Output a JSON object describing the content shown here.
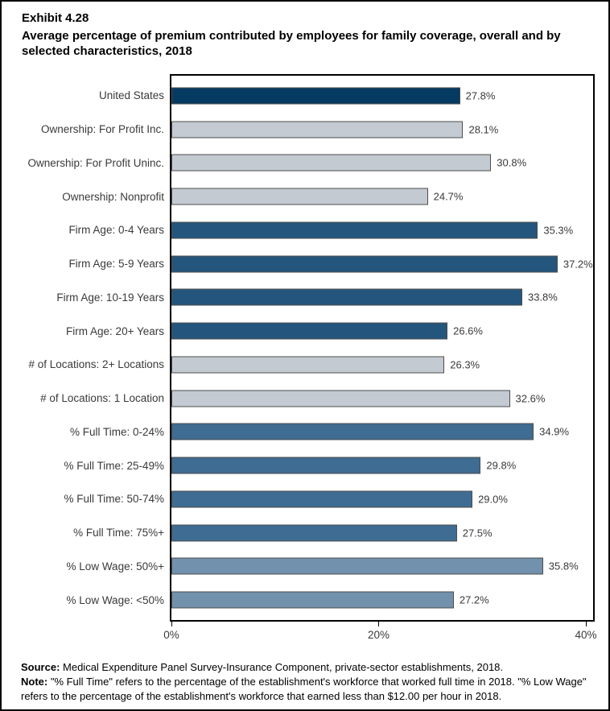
{
  "header": {
    "exhibit": "Exhibit 4.28",
    "title": "Average percentage of premium contributed by employees for family coverage, overall and by selected characteristics, 2018"
  },
  "chart_data": {
    "type": "bar",
    "orientation": "horizontal",
    "title": "Average percentage of premium contributed by employees for family coverage, overall and by selected characteristics, 2018",
    "categories": [
      "United States",
      "Ownership: For Profit Inc.",
      "Ownership: For Profit Uninc.",
      "Ownership: Nonprofit",
      "Firm Age: 0-4 Years",
      "Firm Age: 5-9 Years",
      "Firm Age: 10-19 Years",
      "Firm Age: 20+ Years",
      "# of Locations: 2+ Locations",
      "# of Locations: 1 Location",
      "% Full Time: 0-24%",
      "% Full Time: 25-49%",
      "% Full Time: 50-74%",
      "% Full Time: 75%+",
      "% Low Wage: 50%+",
      "% Low Wage: <50%"
    ],
    "values": [
      27.8,
      28.1,
      30.8,
      24.7,
      35.3,
      37.2,
      33.8,
      26.6,
      26.3,
      32.6,
      34.9,
      29.8,
      29.0,
      27.5,
      35.8,
      27.2
    ],
    "value_labels": [
      "27.8%",
      "28.1%",
      "30.8%",
      "24.7%",
      "35.3%",
      "37.2%",
      "33.8%",
      "26.6%",
      "26.3%",
      "32.6%",
      "34.9%",
      "29.8%",
      "29.0%",
      "27.5%",
      "35.8%",
      "27.2%"
    ],
    "bar_colors": [
      "#053a62",
      "#c4cad2",
      "#c4cad2",
      "#c4cad2",
      "#24567d",
      "#24567d",
      "#24567d",
      "#24567d",
      "#c4cad2",
      "#c4cad2",
      "#3e6c92",
      "#3e6c92",
      "#3e6c92",
      "#3e6c92",
      "#7191ac",
      "#7191ac"
    ],
    "x_ticks": [
      "0%",
      "20%",
      "40%"
    ],
    "x_tick_values": [
      0,
      20,
      40
    ],
    "xlim": [
      0,
      40.7
    ],
    "grid": false,
    "legend": "none"
  },
  "colors": {
    "navy": "#053a62",
    "firm_age_blue": "#24567d",
    "full_time_blue": "#3e6c92",
    "low_wage_blue": "#7191ac",
    "gray": "#c4cad2",
    "bar_border": "#4d4d4d"
  },
  "footnotes": {
    "source_label": "Source:",
    "source_text": " Medical Expenditure Panel Survey-Insurance Component, private-sector establishments, 2018.",
    "note_label": "Note:",
    "note_text": " \"% Full Time\" refers to the percentage of the establishment's workforce that worked full time in 2018. \"% Low Wage\" refers to the percentage of the establishment's workforce that earned less than $12.00 per hour in 2018."
  }
}
